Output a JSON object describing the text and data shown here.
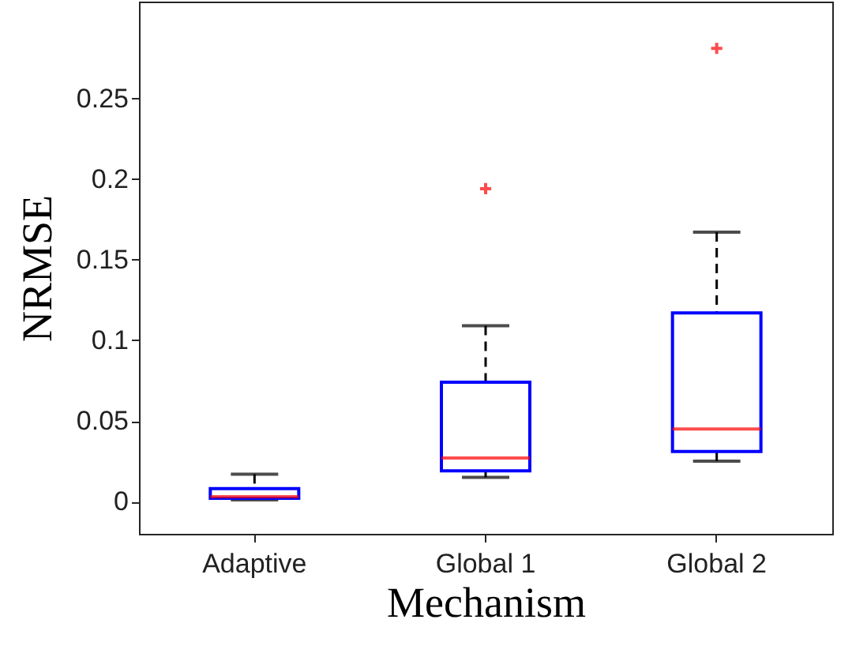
{
  "chart_data": {
    "type": "box",
    "xlabel": "Mechanism",
    "ylabel": "NRMSE",
    "categories": [
      "Adaptive",
      "Global 1",
      "Global 2"
    ],
    "boxes": [
      {
        "low": 0.001,
        "q1": 0.002,
        "median": 0.003,
        "q3": 0.008,
        "high": 0.017
      },
      {
        "low": 0.015,
        "q1": 0.019,
        "median": 0.027,
        "q3": 0.074,
        "high": 0.109,
        "outliers": [
          0.194
        ]
      },
      {
        "low": 0.025,
        "q1": 0.031,
        "median": 0.045,
        "q3": 0.117,
        "high": 0.167,
        "outliers": [
          0.281
        ]
      }
    ],
    "color": "#0000ff",
    "ylim": [
      -0.02,
      0.31
    ],
    "yticks": [
      0,
      0.05,
      0.1,
      0.15,
      0.2,
      0.25
    ],
    "grid": false
  }
}
